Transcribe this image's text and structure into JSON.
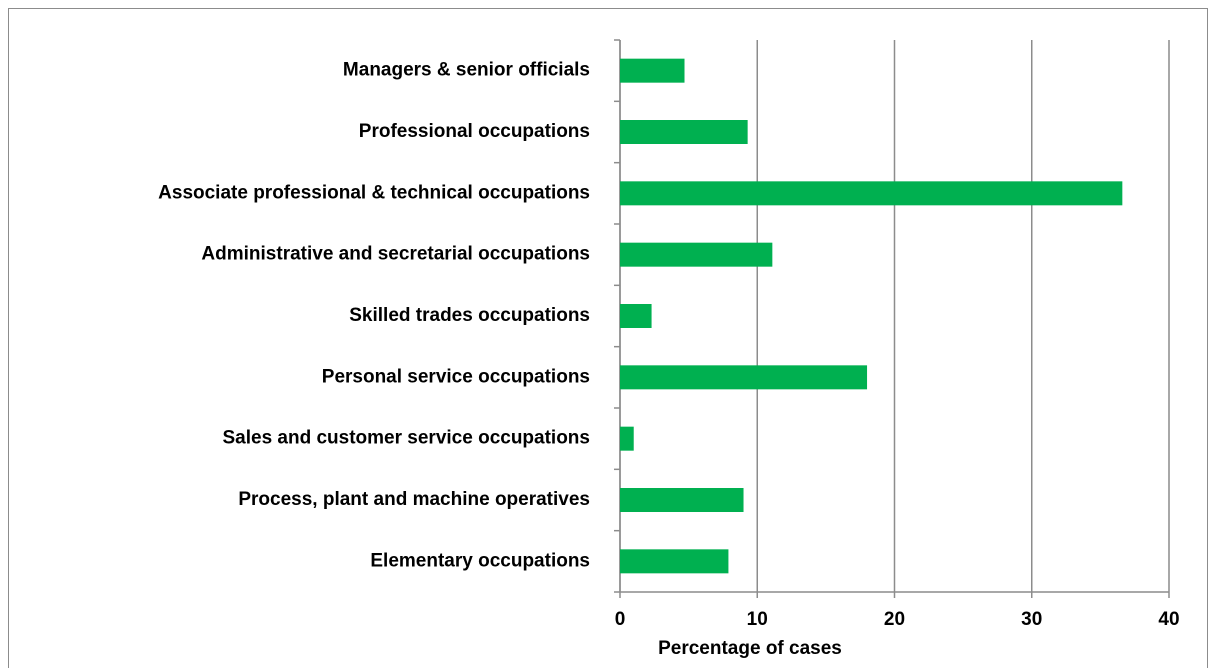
{
  "chart_data": {
    "type": "bar",
    "orientation": "horizontal",
    "x_label": "Percentage of cases",
    "categories": [
      "Managers & senior officials",
      "Professional occupations",
      "Associate professional & technical occupations",
      "Administrative and secretarial occupations",
      "Skilled trades occupations",
      "Personal service occupations",
      "Sales and customer service occupations",
      "Process, plant and machine operatives",
      "Elementary occupations"
    ],
    "values": [
      4.7,
      9.3,
      36.6,
      11.1,
      2.3,
      18.0,
      1.0,
      9.0,
      7.9
    ],
    "color": "#00b050",
    "xlim": [
      0,
      40
    ],
    "xticks": [
      0,
      10,
      20,
      30,
      40
    ],
    "grid": true
  }
}
